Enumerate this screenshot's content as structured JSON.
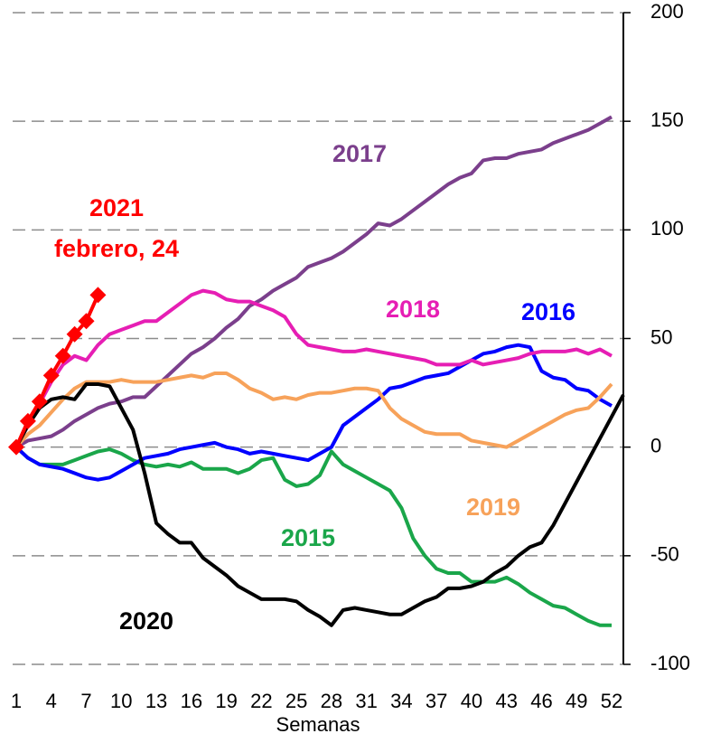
{
  "chart_data": {
    "type": "line",
    "x_label": "Semanas",
    "x": [
      1,
      2,
      3,
      4,
      5,
      6,
      7,
      8,
      9,
      10,
      11,
      12,
      13,
      14,
      15,
      16,
      17,
      18,
      19,
      20,
      21,
      22,
      23,
      24,
      25,
      26,
      27,
      28,
      29,
      30,
      31,
      32,
      33,
      34,
      35,
      36,
      37,
      38,
      39,
      40,
      41,
      42,
      43,
      44,
      45,
      46,
      47,
      48,
      49,
      50,
      51,
      52,
      53
    ],
    "xlim": [
      1,
      52
    ],
    "xticks": [
      1,
      4,
      7,
      10,
      13,
      16,
      19,
      22,
      25,
      28,
      31,
      34,
      37,
      40,
      43,
      46,
      49,
      52
    ],
    "ylim": [
      -100,
      200
    ],
    "yticks": [
      -100,
      -50,
      0,
      50,
      100,
      150,
      200
    ],
    "grid": true,
    "series": [
      {
        "name": "2015",
        "color": "#1aa64a",
        "values": [
          0,
          -5,
          -8,
          -8,
          -8,
          -6,
          -4,
          -2,
          -1,
          -3,
          -6,
          -8,
          -9,
          -8,
          -9,
          -7,
          -10,
          -10,
          -10,
          -12,
          -10,
          -6,
          -5,
          -15,
          -18,
          -17,
          -13,
          -2,
          -8,
          -11,
          -14,
          -17,
          -20,
          -28,
          -42,
          -50,
          -56,
          -58,
          -58,
          -62,
          -62,
          -62,
          -60,
          -63,
          -67,
          -70,
          -73,
          -74,
          -77,
          -80,
          -82,
          -82,
          null
        ]
      },
      {
        "name": "2016",
        "color": "#0000ff",
        "values": [
          0,
          -5,
          -8,
          -9,
          -10,
          -12,
          -14,
          -15,
          -14,
          -11,
          -8,
          -5,
          -4,
          -3,
          -1,
          0,
          1,
          2,
          0,
          -1,
          -3,
          -2,
          -3,
          -4,
          -5,
          -6,
          -3,
          0,
          10,
          14,
          18,
          22,
          27,
          28,
          30,
          32,
          33,
          34,
          37,
          40,
          43,
          44,
          46,
          47,
          46,
          35,
          32,
          31,
          27,
          26,
          22,
          19,
          null
        ]
      },
      {
        "name": "2017",
        "color": "#7b3f8c",
        "values": [
          0,
          3,
          4,
          5,
          8,
          12,
          15,
          18,
          20,
          21,
          23,
          23,
          28,
          33,
          38,
          43,
          46,
          50,
          55,
          59,
          65,
          68,
          72,
          75,
          78,
          83,
          85,
          87,
          90,
          94,
          98,
          103,
          102,
          105,
          109,
          113,
          117,
          121,
          124,
          126,
          132,
          133,
          133,
          135,
          136,
          137,
          140,
          142,
          144,
          146,
          149,
          152,
          null
        ]
      },
      {
        "name": "2018",
        "color": "#e61eb4",
        "values": [
          0,
          10,
          20,
          30,
          38,
          42,
          40,
          47,
          52,
          54,
          56,
          58,
          58,
          62,
          66,
          70,
          72,
          71,
          68,
          67,
          67,
          65,
          63,
          60,
          52,
          47,
          46,
          45,
          44,
          44,
          45,
          44,
          43,
          42,
          41,
          40,
          38,
          38,
          38,
          40,
          38,
          39,
          40,
          41,
          43,
          44,
          44,
          44,
          45,
          43,
          45,
          42,
          null
        ]
      },
      {
        "name": "2019",
        "color": "#f7a25a",
        "values": [
          0,
          6,
          10,
          16,
          22,
          27,
          30,
          30,
          30,
          31,
          30,
          30,
          30,
          31,
          32,
          33,
          32,
          34,
          34,
          31,
          27,
          25,
          22,
          23,
          22,
          24,
          25,
          25,
          26,
          27,
          27,
          26,
          18,
          13,
          10,
          7,
          6,
          6,
          6,
          3,
          2,
          1,
          0,
          3,
          6,
          9,
          12,
          15,
          17,
          18,
          23,
          29,
          null
        ]
      },
      {
        "name": "2020",
        "color": "#000000",
        "values": [
          0,
          10,
          18,
          22,
          23,
          22,
          29,
          29,
          28,
          18,
          8,
          -12,
          -35,
          -40,
          -44,
          -44,
          -51,
          -55,
          -59,
          -64,
          -67,
          -70,
          -70,
          -70,
          -71,
          -75,
          -78,
          -82,
          -75,
          -74,
          -75,
          -76,
          -77,
          -77,
          -74,
          -71,
          -69,
          -65,
          -65,
          -64,
          -62,
          -58,
          -55,
          -50,
          -46,
          -44,
          -36,
          -26,
          -16,
          -6,
          4,
          14,
          24
        ]
      },
      {
        "name": "2021",
        "color": "#ff0000",
        "marker": "diamond",
        "values": [
          0,
          12,
          21,
          33,
          42,
          52,
          58,
          70,
          null,
          null,
          null,
          null,
          null,
          null,
          null,
          null,
          null,
          null,
          null,
          null,
          null,
          null,
          null,
          null,
          null,
          null,
          null,
          null,
          null,
          null,
          null,
          null,
          null,
          null,
          null,
          null,
          null,
          null,
          null,
          null,
          null,
          null,
          null,
          null,
          null,
          null,
          null,
          null,
          null,
          null,
          null,
          null,
          null
        ]
      }
    ],
    "annotations": [
      {
        "text": "febrero, 24",
        "color": "#ff0000"
      }
    ]
  }
}
